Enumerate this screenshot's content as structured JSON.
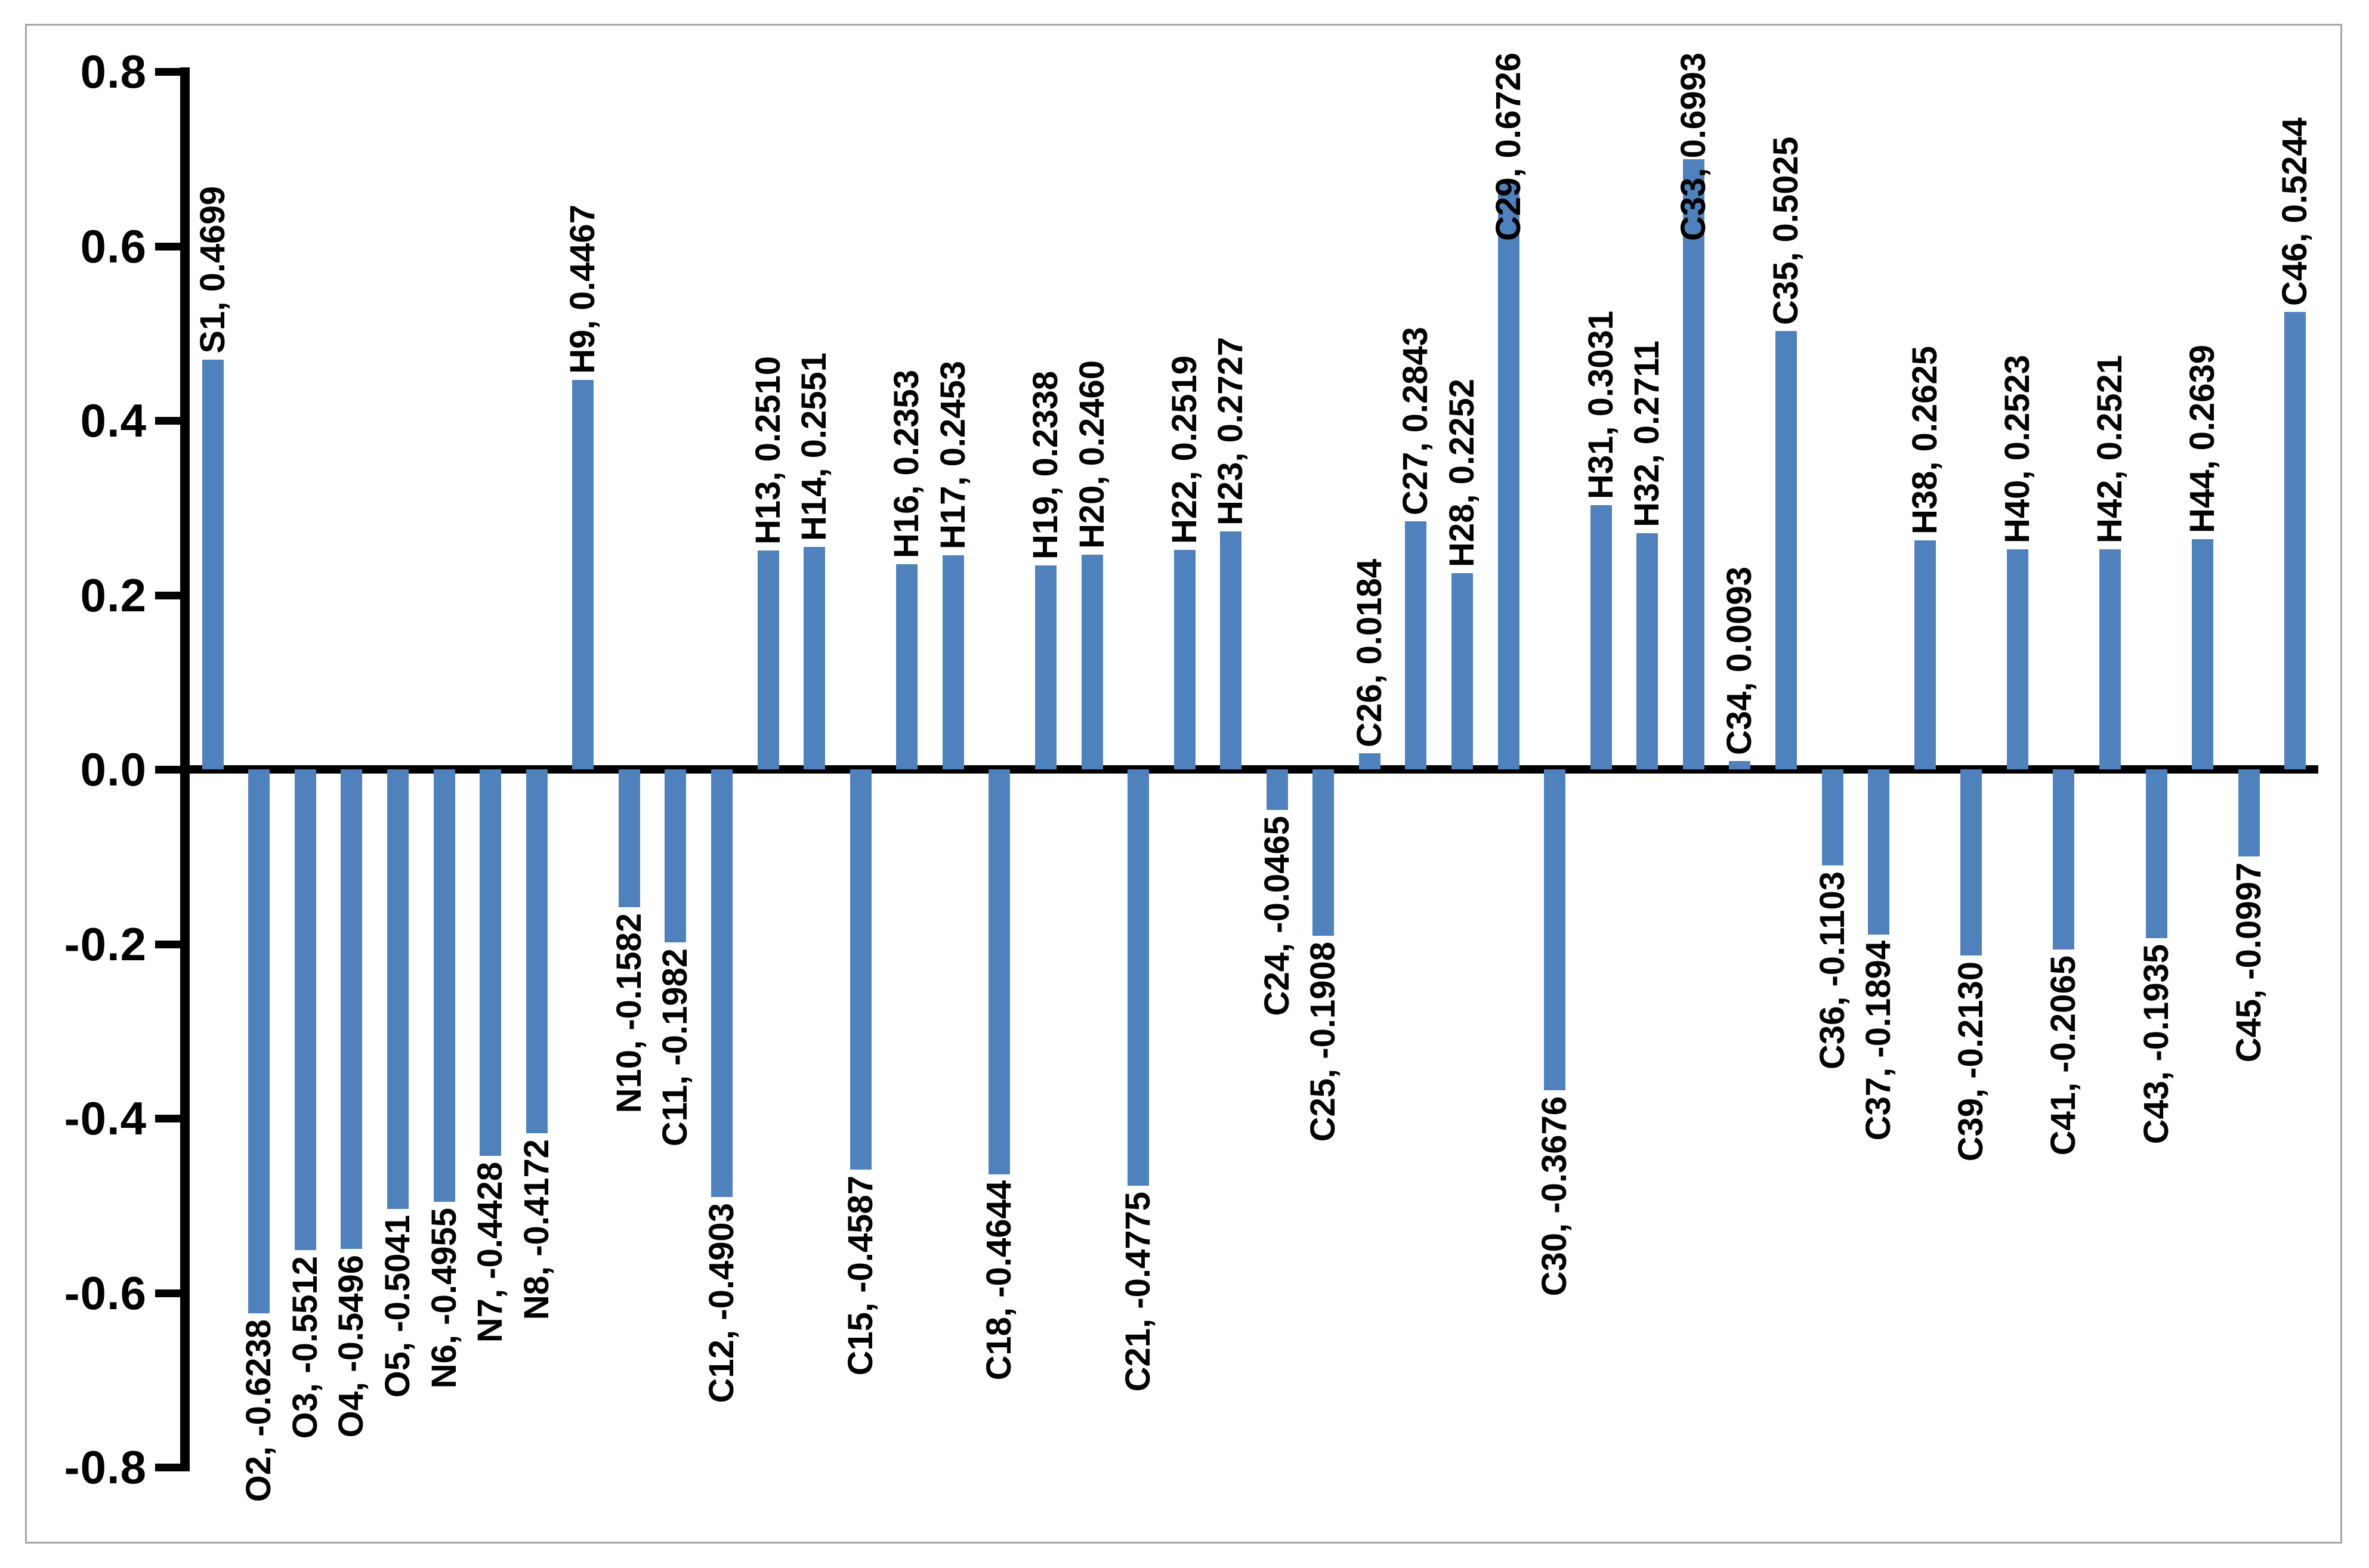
{
  "chart": {
    "bar_color": "#4F81BD",
    "axis_color": "#000000",
    "border_color": "#A6A6A6",
    "background_color": "#FFFFFF",
    "label_color": "#000000"
  },
  "chart_data": {
    "type": "bar",
    "title": "",
    "xlabel": "",
    "ylabel": "",
    "ylim": [
      -0.8,
      0.8
    ],
    "ytick_step": 0.2,
    "ytick_labels": [
      "0.8",
      "0.6",
      "0.4",
      "0.2",
      "0.0",
      "-0.2",
      "-0.4",
      "-0.6",
      "-0.8"
    ],
    "grid": false,
    "legend_position": "none",
    "categories": [
      "S1",
      "O2",
      "O3",
      "O4",
      "O5",
      "N6",
      "N7",
      "N8",
      "H9",
      "N10",
      "C11",
      "C12",
      "H13",
      "H14",
      "C15",
      "H16",
      "H17",
      "C18",
      "H19",
      "H20",
      "C21",
      "H22",
      "H23",
      "C24",
      "C25",
      "C26",
      "C27",
      "H28",
      "C29",
      "C30",
      "H31",
      "H32",
      "C33",
      "C34",
      "C35",
      "C36",
      "C37",
      "H38",
      "C39",
      "H40",
      "C41",
      "H42",
      "C43",
      "H44",
      "C45",
      "C46"
    ],
    "values": [
      0.4699,
      -0.6238,
      -0.5512,
      -0.5496,
      -0.5041,
      -0.4955,
      -0.4428,
      -0.4172,
      0.4467,
      -0.1582,
      -0.1982,
      -0.4903,
      0.251,
      0.2551,
      -0.4587,
      0.2353,
      0.2453,
      -0.4644,
      0.2338,
      0.246,
      -0.4775,
      0.2519,
      0.2727,
      -0.0465,
      -0.1908,
      0.0184,
      0.2843,
      0.2252,
      0.6726,
      -0.3676,
      0.3031,
      0.2711,
      0.6993,
      0.0093,
      0.5025,
      -0.1103,
      -0.1894,
      0.2625,
      -0.213,
      0.2523,
      -0.2065,
      0.2521,
      -0.1935,
      0.2639,
      -0.0997,
      0.5244
    ],
    "data_labels": [
      "S1, 0.4699",
      "O2, -0.6238",
      "O3, -0.5512",
      "O4, -0.5496",
      "O5, -0.5041",
      "N6, -0.4955",
      "N7, -0.4428",
      "N8, -0.4172",
      "H9, 0.4467",
      "N10, -0.1582",
      "C11, -0.1982",
      "C12, -0.4903",
      "H13, 0.2510",
      "H14, 0.2551",
      "C15, -0.4587",
      "H16, 0.2353",
      "H17, 0.2453",
      "C18, -0.4644",
      "H19, 0.2338",
      "H20, 0.2460",
      "C21, -0.4775",
      "H22, 0.2519",
      "H23, 0.2727",
      "C24, -0.0465",
      "C25, -0.1908",
      "C26, 0.0184",
      "C27, 0.2843",
      "H28, 0.2252",
      "C29, 0.6726",
      "C30, -0.3676",
      "H31, 0.3031",
      "H32, 0.2711",
      "C33, 0.6993",
      "C34, 0.0093",
      "C35, 0.5025",
      "C36, -0.1103",
      "C37, -0.1894",
      "H38, 0.2625",
      "C39, -0.2130",
      "H40, 0.2523",
      "C41, -0.2065",
      "H42, 0.2521",
      "C43, -0.1935",
      "H44, 0.2639",
      "C45, -0.0997",
      "C46, 0.5244"
    ]
  }
}
